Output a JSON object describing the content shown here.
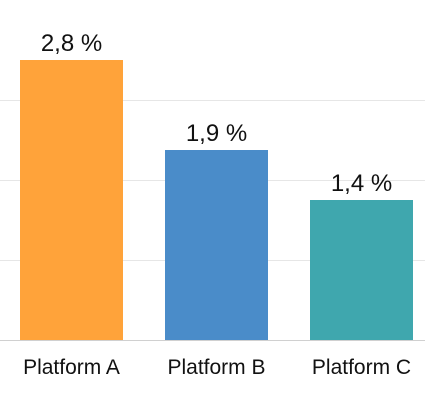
{
  "chart_data": {
    "type": "bar",
    "categories": [
      "Platform A",
      "Platform B",
      "Platform C"
    ],
    "values": [
      2.8,
      1.9,
      1.4
    ],
    "data_labels": [
      "2,8 %",
      "1,9 %",
      "1,4 %"
    ],
    "title": "",
    "xlabel": "",
    "ylabel": "",
    "ylim": [
      0,
      3.2
    ],
    "grid": true,
    "gridlines": [
      0,
      0.8,
      1.6,
      2.4
    ],
    "legend": "none",
    "colors": [
      "#FFA33A",
      "#4A8CC9",
      "#3FA7AE"
    ]
  }
}
